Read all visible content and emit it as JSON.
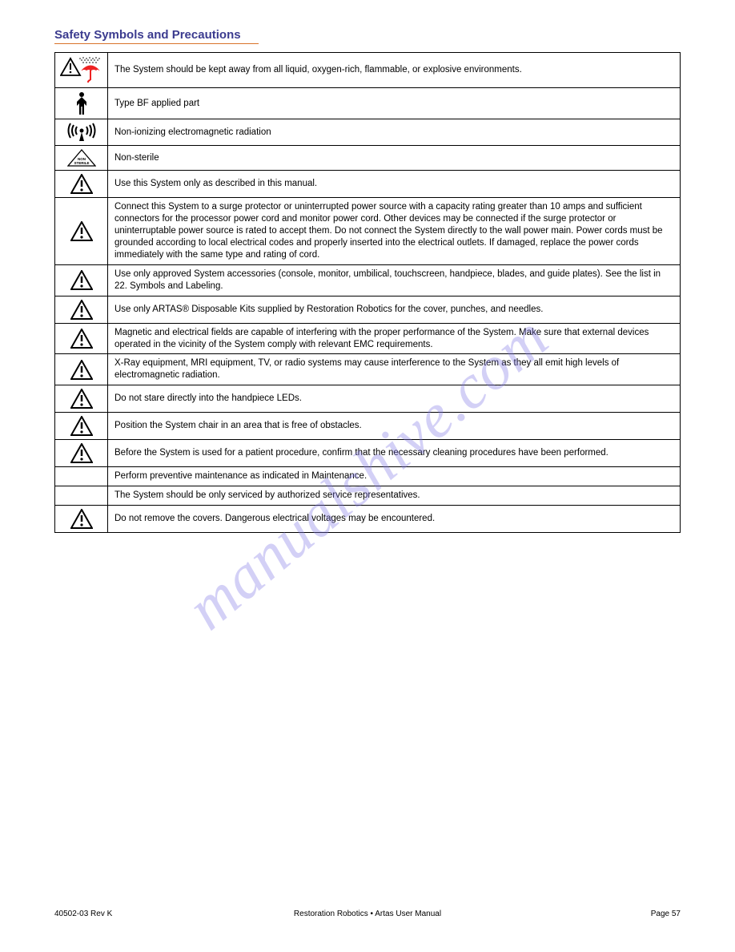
{
  "title": "Safety Symbols and Precautions",
  "rows": [
    {
      "icon": "rain-warning",
      "text": "The System should be kept away from all liquid, oxygen-rich, flammable, or explosive environments."
    },
    {
      "icon": "man",
      "text": "Type BF applied part"
    },
    {
      "icon": "radio",
      "text": "Non-ionizing electromagnetic radiation"
    },
    {
      "icon": "non-sterile",
      "text": "Non-sterile"
    },
    {
      "icon": "warning",
      "text": "Use this System only as described in this manual."
    },
    {
      "icon": "warning",
      "text": "Connect this System to a surge protector or uninterrupted power source with a capacity rating greater than 10 amps and sufficient connectors for the processor power cord and monitor power cord. Other devices may be connected if the surge protector or uninterruptable power source is rated to accept them. Do not connect the System directly to the wall power main. Power cords must be grounded according to local electrical codes and properly inserted into the electrical outlets. If damaged, replace the power cords immediately with the same type and rating of cord."
    },
    {
      "icon": "warning",
      "text": "Use only approved System accessories (console, monitor, umbilical, touchscreen, handpiece, blades, and guide plates). See the list in 22. Symbols and Labeling."
    },
    {
      "icon": "warning",
      "text": "Use only ARTAS® Disposable Kits supplied by Restoration Robotics for the cover, punches, and needles."
    },
    {
      "icon": "warning",
      "text": "Magnetic and electrical fields are capable of interfering with the proper performance of the System. Make sure that external devices operated in the vicinity of the System comply with relevant EMC requirements."
    },
    {
      "icon": "warning",
      "text": "X-Ray equipment, MRI equipment, TV, or radio systems may cause interference to the System as they all emit high levels of electromagnetic radiation."
    },
    {
      "icon": "warning",
      "text": "Do not stare directly into the handpiece LEDs."
    },
    {
      "icon": "warning",
      "text": "Position the System chair in an area that is free of obstacles."
    },
    {
      "icon": "warning",
      "text": "Before the System is used for a patient procedure, confirm that the necessary cleaning procedures have been performed."
    },
    {
      "icon": "none",
      "text": "Perform preventive maintenance as indicated in Maintenance."
    },
    {
      "icon": "none",
      "text": "The System should be only serviced by authorized service representatives."
    },
    {
      "icon": "warning",
      "text": "Do not remove the covers. Dangerous electrical voltages may be encountered."
    }
  ],
  "footer": {
    "left": "40502-03 Rev K",
    "center": "Restoration Robotics • Artas User Manual",
    "right": "Page 57"
  }
}
